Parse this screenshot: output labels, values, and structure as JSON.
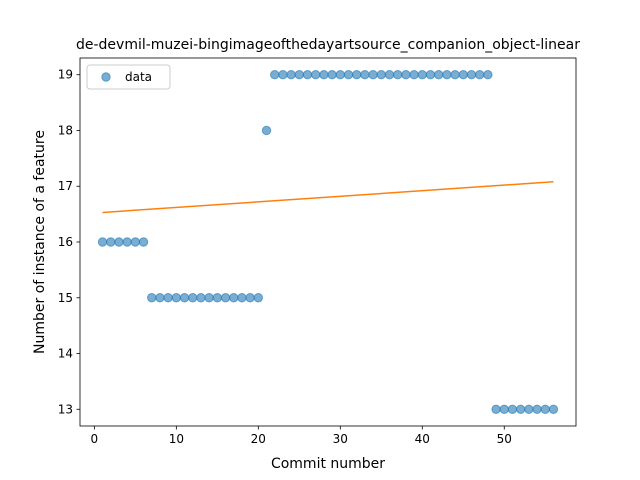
{
  "chart_data": {
    "type": "scatter",
    "title": "de-devmil-muzei-bingimageofthedayartsource_companion_object-linear",
    "xlabel": "Commit number",
    "ylabel": "Number of instance of a feature",
    "xlim": [
      -1.75,
      58.75
    ],
    "ylim": [
      12.7,
      19.3
    ],
    "xticks": [
      0,
      10,
      20,
      30,
      40,
      50
    ],
    "yticks": [
      13,
      14,
      15,
      16,
      17,
      18,
      19
    ],
    "legend": {
      "placement": "top-left",
      "entries": [
        "data"
      ]
    },
    "series": [
      {
        "name": "data",
        "kind": "scatter",
        "color": "#1f77b4",
        "x": [
          1,
          2,
          3,
          4,
          5,
          6,
          7,
          8,
          9,
          10,
          11,
          12,
          13,
          14,
          15,
          16,
          17,
          18,
          19,
          20,
          21,
          22,
          23,
          24,
          25,
          26,
          27,
          28,
          29,
          30,
          31,
          32,
          33,
          34,
          35,
          36,
          37,
          38,
          39,
          40,
          41,
          42,
          43,
          44,
          45,
          46,
          47,
          48,
          49,
          50,
          51,
          52,
          53,
          54,
          55,
          56
        ],
        "y": [
          16,
          16,
          16,
          16,
          16,
          16,
          15,
          15,
          15,
          15,
          15,
          15,
          15,
          15,
          15,
          15,
          15,
          15,
          15,
          15,
          18,
          19,
          19,
          19,
          19,
          19,
          19,
          19,
          19,
          19,
          19,
          19,
          19,
          19,
          19,
          19,
          19,
          19,
          19,
          19,
          19,
          19,
          19,
          19,
          19,
          19,
          19,
          19,
          13,
          13,
          13,
          13,
          13,
          13,
          13,
          13
        ]
      },
      {
        "kind": "line",
        "color": "#ff7f0e",
        "x": [
          1,
          56
        ],
        "y": [
          16.53,
          17.08
        ]
      }
    ]
  }
}
